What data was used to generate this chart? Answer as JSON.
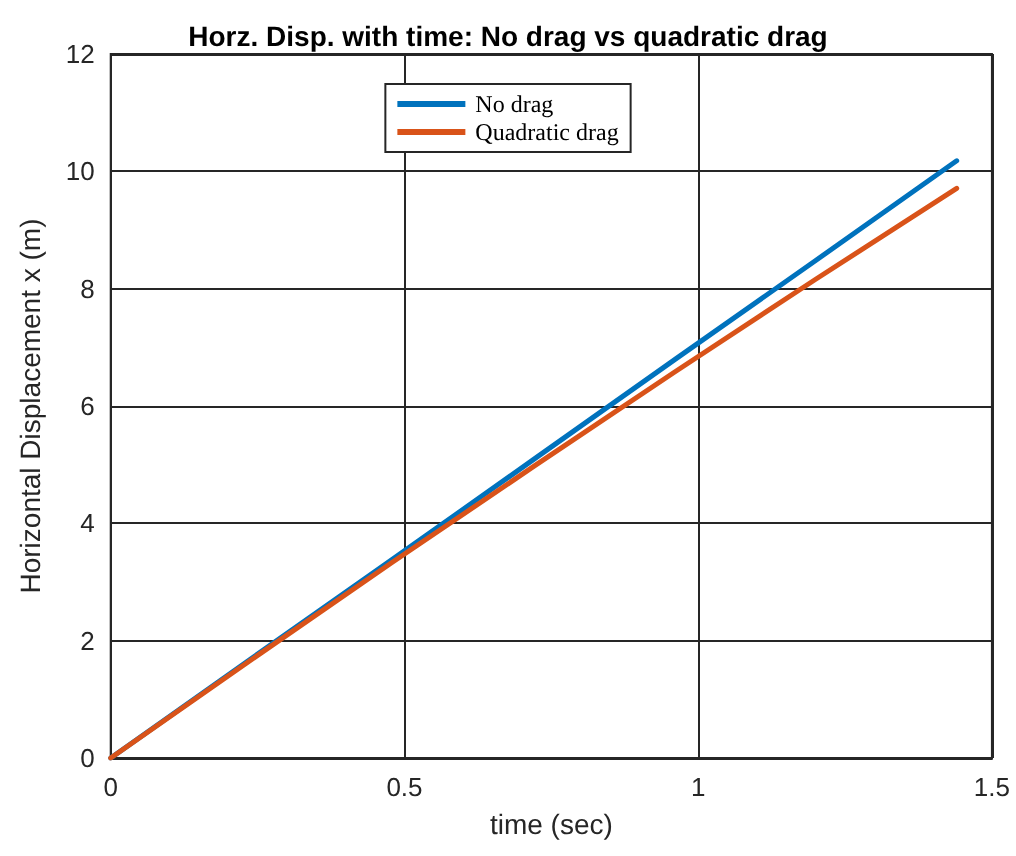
{
  "chart_data": {
    "type": "line",
    "title": "Horz. Disp. with time: No drag vs quadratic drag",
    "xlabel": "time (sec)",
    "ylabel": "Horizontal Displacement x (m)",
    "x": [
      0,
      0.24,
      0.48,
      0.72,
      0.96,
      1.2,
      1.44
    ],
    "series": [
      {
        "name": "No drag",
        "color": "#0072bd",
        "values": [
          0,
          1.7,
          3.39,
          5.09,
          6.79,
          8.48,
          10.18
        ]
      },
      {
        "name": "Quadratic drag",
        "color": "#d95319",
        "values": [
          0,
          1.68,
          3.34,
          4.97,
          6.58,
          8.16,
          9.71
        ]
      }
    ],
    "xlim": [
      0,
      1.5
    ],
    "xticks": [
      0,
      0.5,
      1,
      1.5
    ],
    "ylim": [
      0,
      12
    ],
    "yticks": [
      0,
      2,
      4,
      6,
      8,
      10,
      12
    ],
    "grid": true,
    "legend": "top",
    "marker": "none",
    "line_style": "solid"
  }
}
